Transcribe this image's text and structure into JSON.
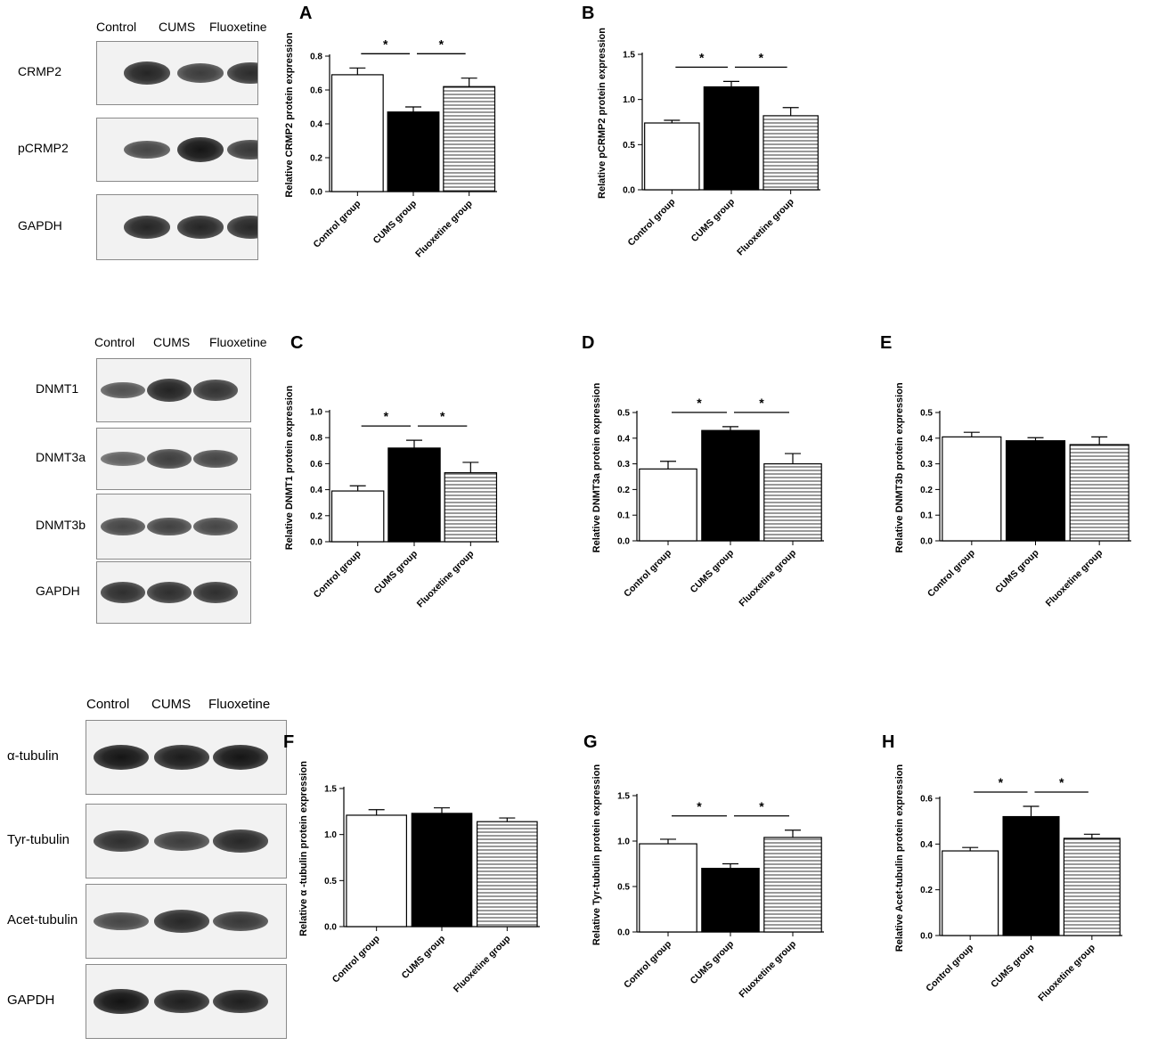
{
  "blots": [
    {
      "columns": [
        "Control",
        "CUMS",
        "Fluoxetine"
      ],
      "rows": [
        {
          "label": "CRMP2",
          "band_levels": [
            0.8,
            0.62,
            0.75
          ]
        },
        {
          "label": "pCRMP2",
          "band_levels": [
            0.55,
            0.92,
            0.65
          ]
        },
        {
          "label": "GAPDH",
          "band_levels": [
            0.8,
            0.8,
            0.78
          ]
        }
      ]
    },
    {
      "columns": [
        "Control",
        "CUMS",
        "Fluoxetine"
      ],
      "rows": [
        {
          "label": "DNMT1",
          "band_levels": [
            0.45,
            0.82,
            0.7
          ]
        },
        {
          "label": "DNMT3a",
          "band_levels": [
            0.35,
            0.6,
            0.55
          ]
        },
        {
          "label": "DNMT3b",
          "band_levels": [
            0.55,
            0.58,
            0.55
          ]
        },
        {
          "label": "GAPDH",
          "band_levels": [
            0.72,
            0.72,
            0.72
          ]
        }
      ]
    },
    {
      "columns": [
        "Control",
        "CUMS",
        "Fluoxetine"
      ],
      "rows": [
        {
          "label": "α-tubulin",
          "band_levels": [
            0.92,
            0.88,
            0.92
          ]
        },
        {
          "label": "Tyr-tubulin",
          "band_levels": [
            0.72,
            0.62,
            0.78
          ]
        },
        {
          "label": "Acet-tubulin",
          "band_levels": [
            0.55,
            0.78,
            0.65
          ]
        },
        {
          "label": "GAPDH",
          "band_levels": [
            0.95,
            0.85,
            0.85
          ]
        }
      ]
    }
  ],
  "chart_data": [
    {
      "type": "bar",
      "panel": "A",
      "ylabel": "Relative CRMP2 protein expression",
      "categories": [
        "Control group",
        "CUMS group",
        "Fluoxetine group"
      ],
      "values": [
        0.69,
        0.47,
        0.62
      ],
      "errors": [
        0.04,
        0.03,
        0.05
      ],
      "ylim": [
        0,
        0.8
      ],
      "ticks": [
        "0.0",
        "0.2",
        "0.4",
        "0.6",
        "0.8"
      ],
      "significance": [
        {
          "from": 0,
          "to": 1,
          "label": "*"
        },
        {
          "from": 1,
          "to": 2,
          "label": "*"
        }
      ]
    },
    {
      "type": "bar",
      "panel": "B",
      "ylabel": "Relative pCRMP2 protein expression",
      "categories": [
        "Control group",
        "CUMS group",
        "Fluoxetine group"
      ],
      "values": [
        0.74,
        1.14,
        0.82
      ],
      "errors": [
        0.03,
        0.06,
        0.09
      ],
      "ylim": [
        0,
        1.5
      ],
      "ticks": [
        "0.0",
        "0.5",
        "1.0",
        "1.5"
      ],
      "significance": [
        {
          "from": 0,
          "to": 1,
          "label": "*"
        },
        {
          "from": 1,
          "to": 2,
          "label": "*"
        }
      ]
    },
    {
      "type": "bar",
      "panel": "C",
      "ylabel": "Relative DNMT1 protein expression",
      "categories": [
        "Control group",
        "CUMS group",
        "Fluoxetine group"
      ],
      "values": [
        0.39,
        0.72,
        0.53
      ],
      "errors": [
        0.04,
        0.06,
        0.08
      ],
      "ylim": [
        0,
        1.0
      ],
      "ticks": [
        "0.0",
        "0.2",
        "0.4",
        "0.6",
        "0.8",
        "1.0"
      ],
      "significance": [
        {
          "from": 0,
          "to": 1,
          "label": "*"
        },
        {
          "from": 1,
          "to": 2,
          "label": "*"
        }
      ]
    },
    {
      "type": "bar",
      "panel": "D",
      "ylabel": "Relative DNMT3a protein expression",
      "categories": [
        "Control group",
        "CUMS group",
        "Fluoxetine group"
      ],
      "values": [
        0.28,
        0.43,
        0.3
      ],
      "errors": [
        0.03,
        0.015,
        0.04
      ],
      "ylim": [
        0,
        0.5
      ],
      "ticks": [
        "0.0",
        "0.1",
        "0.2",
        "0.3",
        "0.4",
        "0.5"
      ],
      "significance": [
        {
          "from": 0,
          "to": 1,
          "label": "*"
        },
        {
          "from": 1,
          "to": 2,
          "label": "*"
        }
      ]
    },
    {
      "type": "bar",
      "panel": "E",
      "ylabel": "Relative DNMT3b protein expression",
      "categories": [
        "Control group",
        "CUMS group",
        "Fluoxetine group"
      ],
      "values": [
        0.405,
        0.39,
        0.375
      ],
      "errors": [
        0.018,
        0.012,
        0.03
      ],
      "ylim": [
        0,
        0.5
      ],
      "ticks": [
        "0.0",
        "0.1",
        "0.2",
        "0.3",
        "0.4",
        "0.5"
      ],
      "significance": []
    },
    {
      "type": "bar",
      "panel": "F",
      "ylabel": "Relative α -tubulin protein expression",
      "categories": [
        "Control group",
        "CUMS group",
        "Fluoxetine group"
      ],
      "values": [
        1.21,
        1.23,
        1.14
      ],
      "errors": [
        0.06,
        0.06,
        0.04
      ],
      "ylim": [
        0,
        1.5
      ],
      "ticks": [
        "0.0",
        "0.5",
        "1.0",
        "1.5"
      ],
      "significance": []
    },
    {
      "type": "bar",
      "panel": "G",
      "ylabel": "Relative Tyr-tubulin protein expression",
      "categories": [
        "Control group",
        "CUMS group",
        "Fluoxetine group"
      ],
      "values": [
        0.97,
        0.7,
        1.04
      ],
      "errors": [
        0.05,
        0.05,
        0.08
      ],
      "ylim": [
        0,
        1.5
      ],
      "ticks": [
        "0.0",
        "0.5",
        "1.0",
        "1.5"
      ],
      "significance": [
        {
          "from": 0,
          "to": 1,
          "label": "*"
        },
        {
          "from": 1,
          "to": 2,
          "label": "*"
        }
      ]
    },
    {
      "type": "bar",
      "panel": "H",
      "ylabel": "Relative Acet-tubulin protein expression",
      "categories": [
        "Control group",
        "CUMS group",
        "Fluoxetine group"
      ],
      "values": [
        0.37,
        0.52,
        0.425
      ],
      "errors": [
        0.015,
        0.045,
        0.018
      ],
      "ylim": [
        0,
        0.6
      ],
      "ticks": [
        "0.0",
        "0.2",
        "0.4",
        "0.6"
      ],
      "significance": [
        {
          "from": 0,
          "to": 1,
          "label": "*"
        },
        {
          "from": 1,
          "to": 2,
          "label": "*"
        }
      ]
    }
  ],
  "colors": {
    "control_fill": "#ffffff",
    "cums_fill": "#000000",
    "fluoxetine_fill": "striped",
    "axis": "#000000"
  }
}
